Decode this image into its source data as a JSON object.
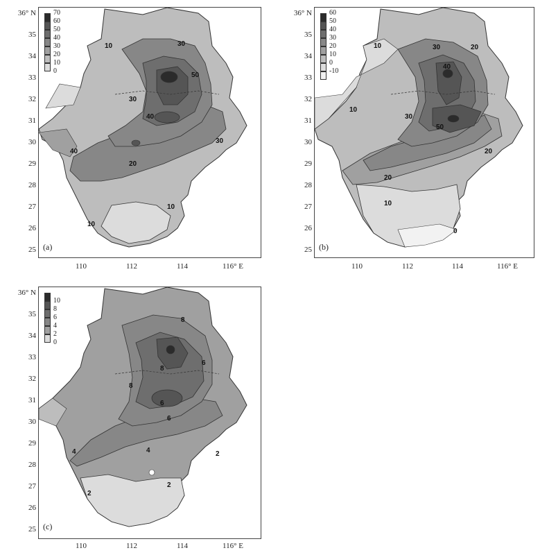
{
  "panels": [
    {
      "label": "(a)",
      "lat_ticks": [
        "36° N",
        "35",
        "34",
        "33",
        "32",
        "31",
        "30",
        "29",
        "28",
        "27",
        "26",
        "25"
      ],
      "lon_ticks": [
        "110",
        "112",
        "114",
        "116° E"
      ],
      "legend": [
        "70",
        "60",
        "50",
        "40",
        "30",
        "20",
        "10",
        "0"
      ],
      "contour_labels": [
        "10",
        "20",
        "30",
        "40",
        "50",
        "30",
        "20",
        "30",
        "20",
        "10",
        "10",
        "40",
        "50"
      ]
    },
    {
      "label": "(b)",
      "lat_ticks": [
        "36° N",
        "35",
        "34",
        "33",
        "32",
        "31",
        "30",
        "29",
        "28",
        "27",
        "26",
        "25"
      ],
      "lon_ticks": [
        "110",
        "112",
        "114",
        "116° E"
      ],
      "legend": [
        "60",
        "50",
        "40",
        "30",
        "20",
        "10",
        "0",
        "-10"
      ],
      "contour_labels": [
        "10",
        "20",
        "30",
        "40",
        "50",
        "30",
        "20",
        "10",
        "0",
        "10",
        "20",
        "30",
        "40",
        "50",
        "20"
      ]
    },
    {
      "label": "(c)",
      "lat_ticks": [
        "36° N",
        "35",
        "34",
        "33",
        "32",
        "31",
        "30",
        "29",
        "28",
        "27",
        "26",
        "25"
      ],
      "lon_ticks": [
        "110",
        "112",
        "114",
        "116° E"
      ],
      "legend": [
        "10",
        "8",
        "6",
        "4",
        "2",
        "0"
      ],
      "contour_labels": [
        "8",
        "6",
        "8",
        "6",
        "6",
        "4",
        "2",
        "2",
        "2",
        "4",
        "8",
        "6"
      ]
    }
  ],
  "shade_colors": [
    "#2b2b2b",
    "#555555",
    "#6e6e6e",
    "#878787",
    "#a0a0a0",
    "#bdbdbd",
    "#dcdcdc",
    "#f2f2f2"
  ]
}
